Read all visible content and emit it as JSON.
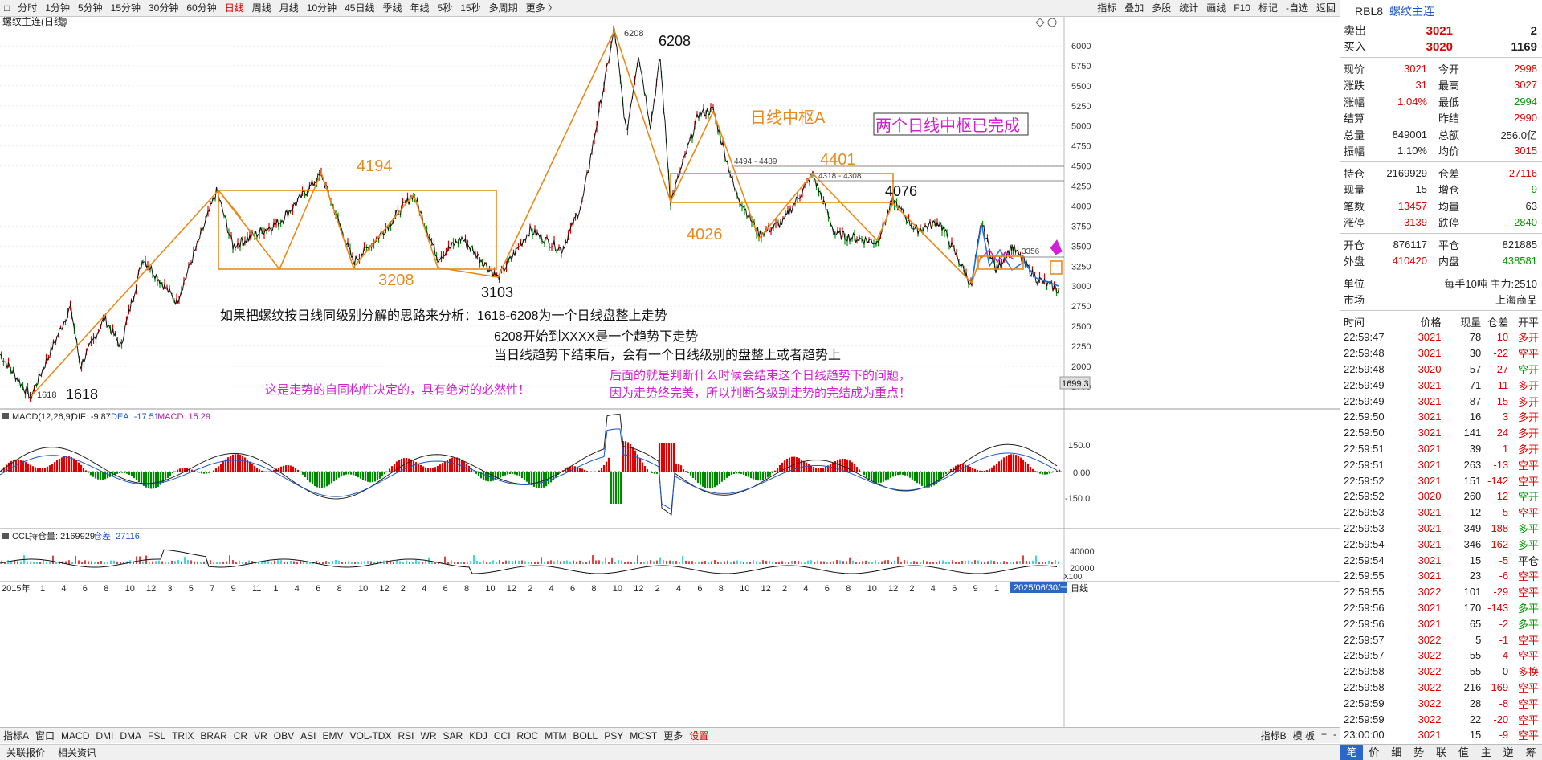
{
  "topbar": {
    "periods": [
      "分时",
      "1分钟",
      "5分钟",
      "15分钟",
      "30分钟",
      "60分钟",
      "日线",
      "周线",
      "月线",
      "10分钟",
      "45日线",
      "季线",
      "年线",
      "5秒",
      "15秒",
      "多周期",
      "更多 〉"
    ],
    "active": "日线",
    "right": [
      "指标",
      "叠加",
      "多股",
      "统计",
      "画线",
      "F10",
      "标记",
      "-自选",
      "返回"
    ]
  },
  "chart": {
    "title": "螺纹主连(日线)",
    "price_ticks": [
      "6000",
      "5750",
      "5500",
      "5250",
      "5000",
      "4750",
      "4500",
      "4250",
      "4000",
      "3750",
      "3500",
      "3250",
      "3000",
      "2750",
      "2500",
      "2250",
      "2000",
      "1750"
    ],
    "current_label": "1699.3",
    "labels": {
      "p6208a": "6208",
      "p6208b": "6208",
      "p4194": "4194",
      "p3208": "3208",
      "p3103": "3103",
      "p1618a": "1618",
      "p1618b": "1618",
      "p4401": "4401",
      "p4026": "4026",
      "p4076": "4076",
      "z1": "4494 - 4489",
      "z2": "4318 - 4308",
      "p3356": "3356",
      "zhongshu": "日线中枢A",
      "boxed": "两个日线中枢已完成"
    },
    "annotations": {
      "line1": "如果把螺纹按日线同级别分解的思路来分析：1618-6208为一个日线盘整上走势",
      "line2": "6208开始到XXXX是一个趋势下走势",
      "line3": "当日线趋势下结束后，会有一个日线级别的盘整上或者趋势上",
      "line4": "这是走势的自同构性决定的，具有绝对的必然性！",
      "line5": "后面的就是判断什么时候会结束这个日线趋势下的问题，",
      "line6": "因为走势终完美，所以判断各级别走势的完结成为重点！"
    },
    "macd": {
      "label": "MACD(12,26,9)",
      "dif": "DIF: -9.87",
      "dea": "DEA: -17.51",
      "macd": "MACD: 15.29",
      "ticks": [
        "150.0",
        "0.00",
        "-150.0"
      ]
    },
    "ccl": {
      "label": "CCL",
      "hold": "持仓量: 2169929",
      "diff": "仓差: 27116",
      "ticks": [
        "40000",
        "20000"
      ],
      "scale": "X100"
    },
    "xaxis": {
      "year": "2015年",
      "months": [
        "1",
        "4",
        "6",
        "8",
        "10",
        "12",
        "3",
        "5",
        "7",
        "9",
        "11",
        "1",
        "4",
        "6",
        "8",
        "10",
        "12",
        "2",
        "4",
        "6",
        "8",
        "10",
        "12",
        "2",
        "4",
        "6",
        "8",
        "10",
        "12",
        "2",
        "4",
        "6",
        "8",
        "10",
        "12",
        "2",
        "4",
        "6",
        "8",
        "10",
        "12",
        "2",
        "4",
        "6",
        "9",
        "1"
      ],
      "end_date": "2025/06/30/一",
      "period": "日线"
    }
  },
  "bottom_tabs": [
    "指标A",
    "窗口",
    "MACD",
    "DMI",
    "DMA",
    "FSL",
    "TRIX",
    "BRAR",
    "CR",
    "VR",
    "OBV",
    "ASI",
    "EMV",
    "VOL-TDX",
    "RSI",
    "WR",
    "SAR",
    "KDJ",
    "CCI",
    "ROC",
    "MTM",
    "BOLL",
    "PSY",
    "MCST",
    "更多",
    "设置"
  ],
  "bottom_right": [
    "指标B",
    "模 板",
    "+",
    "-"
  ],
  "status": [
    "关联报价",
    "相关资讯"
  ],
  "panel": {
    "code": "RBL8",
    "name": "螺纹主连",
    "sell": {
      "label": "卖出",
      "price": "3021",
      "vol": "2"
    },
    "buy": {
      "label": "买入",
      "price": "3020",
      "vol": "1169"
    },
    "quote1": [
      [
        "现价",
        "3021",
        "今开",
        "2998"
      ],
      [
        "涨跌",
        "31",
        "最高",
        "3027"
      ],
      [
        "涨幅",
        "1.04%",
        "最低",
        "2994"
      ],
      [
        "结算",
        "",
        "昨结",
        "2990"
      ],
      [
        "总量",
        "849001",
        "总额",
        "256.0亿"
      ],
      [
        "振幅",
        "1.10%",
        "均价",
        "3015"
      ]
    ],
    "quote2": [
      [
        "持仓",
        "2169929",
        "仓差",
        "27116"
      ],
      [
        "现量",
        "15",
        "增仓",
        "-9"
      ],
      [
        "笔数",
        "13457",
        "均量",
        "63"
      ],
      [
        "涨停",
        "3139",
        "跌停",
        "2840"
      ]
    ],
    "quote3": [
      [
        "开仓",
        "876117",
        "平仓",
        "821885"
      ],
      [
        "外盘",
        "410420",
        "内盘",
        "438581"
      ]
    ],
    "unit": {
      "l1": "单位",
      "v1": "每手10吨 主力:2510",
      "l2": "市场",
      "v2": "上海商品"
    },
    "tt_head": [
      "时间",
      "价格",
      "现量",
      "仓差",
      "开平"
    ],
    "ticks": [
      [
        "22:59:47",
        "3021",
        "78",
        "10",
        "多开"
      ],
      [
        "22:59:48",
        "3021",
        "30",
        "-22",
        "空平"
      ],
      [
        "22:59:48",
        "3020",
        "57",
        "27",
        "空开"
      ],
      [
        "22:59:49",
        "3021",
        "71",
        "11",
        "多开"
      ],
      [
        "22:59:49",
        "3021",
        "87",
        "15",
        "多开"
      ],
      [
        "22:59:50",
        "3021",
        "16",
        "3",
        "多开"
      ],
      [
        "22:59:50",
        "3021",
        "141",
        "24",
        "多开"
      ],
      [
        "22:59:51",
        "3021",
        "39",
        "1",
        "多开"
      ],
      [
        "22:59:51",
        "3021",
        "263",
        "-13",
        "空平"
      ],
      [
        "22:59:52",
        "3021",
        "151",
        "-142",
        "空平"
      ],
      [
        "22:59:52",
        "3020",
        "260",
        "12",
        "空开"
      ],
      [
        "22:59:53",
        "3021",
        "12",
        "-5",
        "空平"
      ],
      [
        "22:59:53",
        "3021",
        "349",
        "-188",
        "多平"
      ],
      [
        "22:59:54",
        "3021",
        "346",
        "-162",
        "多平"
      ],
      [
        "22:59:54",
        "3021",
        "15",
        "-5",
        "平仓"
      ],
      [
        "22:59:55",
        "3021",
        "23",
        "-6",
        "空平"
      ],
      [
        "22:59:55",
        "3022",
        "101",
        "-29",
        "空平"
      ],
      [
        "22:59:56",
        "3021",
        "170",
        "-143",
        "多平"
      ],
      [
        "22:59:56",
        "3021",
        "65",
        "-2",
        "多平"
      ],
      [
        "22:59:57",
        "3022",
        "5",
        "-1",
        "空平"
      ],
      [
        "22:59:57",
        "3022",
        "55",
        "-4",
        "空平"
      ],
      [
        "22:59:58",
        "3022",
        "55",
        "0",
        "多换"
      ],
      [
        "22:59:58",
        "3022",
        "216",
        "-169",
        "空平"
      ],
      [
        "22:59:59",
        "3022",
        "28",
        "-8",
        "空平"
      ],
      [
        "22:59:59",
        "3022",
        "22",
        "-20",
        "空平"
      ],
      [
        "23:00:00",
        "3021",
        "15",
        "-9",
        "空平"
      ]
    ],
    "foot": [
      "笔",
      "价",
      "细",
      "势",
      "联",
      "值",
      "主",
      "逆",
      "筹"
    ]
  }
}
